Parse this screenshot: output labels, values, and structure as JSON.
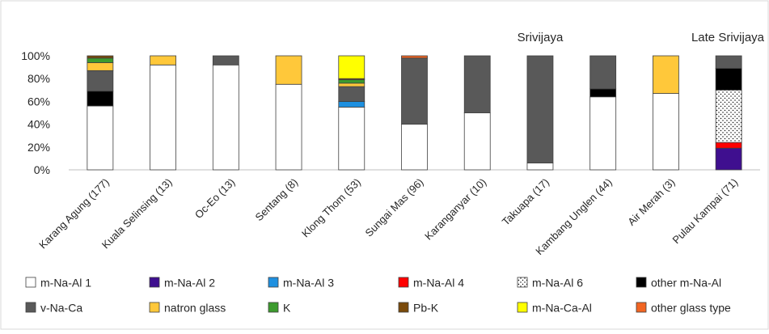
{
  "chart_data": {
    "type": "bar",
    "stacked": true,
    "ylim": [
      0,
      100
    ],
    "yticks": [
      "0%",
      "20%",
      "40%",
      "60%",
      "80%",
      "100%"
    ],
    "grid": false,
    "legend_position": "bottom",
    "period_labels": [
      {
        "text": "Srivijaya",
        "category": "Takuapa (17)"
      },
      {
        "text": "Late Srivijaya",
        "category": "Pulau Kampai (71)"
      }
    ],
    "categories": [
      "Karang Agung (177)",
      "Kuala Selinsing (13)",
      "Oc-Eo (13)",
      "Sentang (8)",
      "Klong Thom (53)",
      "Sungai Mas (96)",
      "Karanganyar (10)",
      "Takuapa (17)",
      "Kambang Unglen (44)",
      "Air Merah (3)",
      "Pulau Kampai (71)"
    ],
    "series": [
      {
        "name": "m-Na-Al 1",
        "color": "#ffffff",
        "values": [
          56,
          92,
          92,
          75,
          55,
          40,
          50,
          6,
          64,
          67,
          0
        ]
      },
      {
        "name": "m-Na-Al 2",
        "color": "#3f0f8f",
        "values": [
          0,
          0,
          0,
          0,
          0,
          0,
          0,
          0,
          0,
          0,
          19
        ]
      },
      {
        "name": "m-Na-Al 3",
        "color": "#1e90e0",
        "values": [
          0,
          0,
          0,
          0,
          5,
          0,
          0,
          0,
          0,
          0,
          0
        ]
      },
      {
        "name": "m-Na-Al 4",
        "color": "#ff0000",
        "values": [
          0,
          0,
          0,
          0,
          0,
          0,
          0,
          0,
          0,
          0,
          5
        ]
      },
      {
        "name": "m-Na-Al 6",
        "color": "#ffffff",
        "pattern": "dots",
        "values": [
          0,
          0,
          0,
          0,
          0,
          0,
          0,
          0,
          0,
          0,
          46
        ]
      },
      {
        "name": "other m-Na-Al",
        "color": "#000000",
        "values": [
          13,
          0,
          0,
          0,
          0,
          0,
          0,
          0,
          7,
          0,
          19
        ]
      },
      {
        "name": "v-Na-Ca",
        "color": "#595959",
        "values": [
          18,
          0,
          8,
          0,
          13,
          58,
          50,
          94,
          29,
          0,
          11
        ]
      },
      {
        "name": "natron glass",
        "color": "#ffc83a",
        "values": [
          7,
          8,
          0,
          25,
          3,
          0,
          0,
          0,
          0,
          33,
          0
        ]
      },
      {
        "name": "K",
        "color": "#3c9b2e",
        "values": [
          4,
          0,
          0,
          0,
          3,
          0,
          0,
          0,
          0,
          0,
          0
        ]
      },
      {
        "name": "Pb-K",
        "color": "#7a4a0a",
        "values": [
          2,
          0,
          0,
          0,
          1,
          0,
          0,
          0,
          0,
          0,
          0
        ]
      },
      {
        "name": "m-Na-Ca-Al",
        "color": "#ffff00",
        "values": [
          0,
          0,
          0,
          0,
          20,
          0,
          0,
          0,
          0,
          0,
          0
        ]
      },
      {
        "name": "other glass type",
        "color": "#f26522",
        "values": [
          0,
          0,
          0,
          0,
          0,
          2,
          0,
          0,
          0,
          0,
          0
        ]
      }
    ],
    "legend_order": [
      "m-Na-Al 1",
      "m-Na-Al 2",
      "m-Na-Al 3",
      "m-Na-Al 4",
      "m-Na-Al 6",
      "other m-Na-Al",
      "v-Na-Ca",
      "natron glass",
      "K",
      "Pb-K",
      "m-Na-Ca-Al",
      "other glass type"
    ]
  }
}
